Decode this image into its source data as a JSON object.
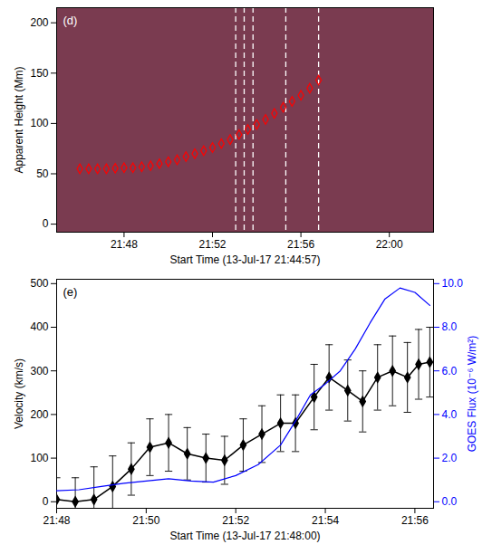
{
  "chart_data": [
    {
      "type": "scatter",
      "panel_label": "(d)",
      "xlabel": "Start Time (13-Jul-17 21:44:57)",
      "ylabel": "Apparent Height (Mm)",
      "xlim": [
        "21:44:57",
        "22:02:00"
      ],
      "xticks": [
        {
          "value": "21:48:00",
          "label": "21:48"
        },
        {
          "value": "21:52:00",
          "label": "21:52"
        },
        {
          "value": "21:56:00",
          "label": "21:56"
        },
        {
          "value": "22:00:00",
          "label": "22:00"
        }
      ],
      "ylim": [
        -8,
        215
      ],
      "yticks": [
        0,
        50,
        100,
        150,
        200
      ],
      "x": [
        "21:46:00",
        "21:46:24",
        "21:46:48",
        "21:47:12",
        "21:47:36",
        "21:48:00",
        "21:48:24",
        "21:48:48",
        "21:49:12",
        "21:49:36",
        "21:50:00",
        "21:50:24",
        "21:50:48",
        "21:51:12",
        "21:51:36",
        "21:52:00",
        "21:52:24",
        "21:52:48",
        "21:53:12",
        "21:53:36",
        "21:54:00",
        "21:54:24",
        "21:54:48",
        "21:55:12",
        "21:55:36",
        "21:56:00",
        "21:56:24",
        "21:56:48"
      ],
      "series": [
        {
          "values": [
            55,
            55,
            55,
            55,
            55.5,
            56,
            56,
            57,
            58,
            60,
            62,
            64,
            67,
            70,
            73,
            76,
            80,
            84,
            89,
            94,
            99,
            104,
            110,
            116,
            122,
            128,
            135,
            143
          ],
          "color": "#ff0000",
          "marker": "diamond"
        }
      ],
      "vlines": {
        "x": [
          "21:53:03",
          "21:53:26",
          "21:53:50",
          "21:55:19",
          "21:56:48"
        ],
        "color": "#ffffff",
        "line_style": "dashed"
      }
    },
    {
      "type": "line",
      "panel_label": "(e)",
      "xlabel": "Start Time (13-Jul-17 21:48:00)",
      "ylabel": "Velocity (km/s)",
      "y2label": "GOES Flux (10⁻⁶ W/m²)",
      "xlim": [
        "21:48:00",
        "21:56:25"
      ],
      "xticks": [
        {
          "value": "21:48:00",
          "label": "21:48"
        },
        {
          "value": "21:50:00",
          "label": "21:50"
        },
        {
          "value": "21:52:00",
          "label": "21:52"
        },
        {
          "value": "21:54:00",
          "label": "21:54"
        },
        {
          "value": "21:56:00",
          "label": "21:56"
        }
      ],
      "ylim": [
        -15,
        510
      ],
      "yticks": [
        0,
        100,
        200,
        300,
        400,
        500
      ],
      "y2lim": [
        -0.3,
        10.2
      ],
      "y2ticks": [
        {
          "value": 0,
          "label": "0.0"
        },
        {
          "value": 2,
          "label": "2.0"
        },
        {
          "value": 4,
          "label": "4.0"
        },
        {
          "value": 6,
          "label": "6.0"
        },
        {
          "value": 8,
          "label": "8.0"
        },
        {
          "value": 10,
          "label": "10.0"
        }
      ],
      "series": [
        {
          "x": [
            "21:48:00",
            "21:48:25",
            "21:48:50",
            "21:49:15",
            "21:49:40",
            "21:50:05",
            "21:50:30",
            "21:50:55",
            "21:51:20",
            "21:51:45",
            "21:52:10",
            "21:52:35",
            "21:53:00",
            "21:53:20",
            "21:53:45",
            "21:54:05",
            "21:54:30",
            "21:54:50",
            "21:55:10",
            "21:55:30",
            "21:55:50",
            "21:56:05",
            "21:56:20"
          ],
          "values": [
            5,
            0,
            5,
            35,
            75,
            125,
            135,
            110,
            100,
            95,
            130,
            155,
            180,
            180,
            240,
            285,
            255,
            230,
            285,
            300,
            285,
            315,
            320
          ],
          "errors": [
            50,
            55,
            75,
            70,
            60,
            65,
            65,
            60,
            55,
            55,
            60,
            65,
            65,
            65,
            75,
            75,
            70,
            70,
            75,
            80,
            80,
            80,
            80
          ],
          "color": "#000000",
          "marker": "diamond"
        },
        {
          "x": [
            "21:48:00",
            "21:48:30",
            "21:49:00",
            "21:49:30",
            "21:50:00",
            "21:50:30",
            "21:51:00",
            "21:51:30",
            "21:52:00",
            "21:52:30",
            "21:53:00",
            "21:53:20",
            "21:53:40",
            "21:54:00",
            "21:54:20",
            "21:54:40",
            "21:55:00",
            "21:55:20",
            "21:55:40",
            "21:56:00",
            "21:56:20"
          ],
          "values": [
            0.5,
            0.55,
            0.7,
            0.85,
            0.95,
            1.05,
            0.95,
            0.9,
            1.2,
            1.7,
            2.6,
            3.7,
            4.9,
            5.4,
            6.0,
            7.0,
            8.2,
            9.3,
            9.8,
            9.6,
            9.0
          ],
          "color": "#0000ff",
          "axis": "y2"
        }
      ]
    }
  ]
}
